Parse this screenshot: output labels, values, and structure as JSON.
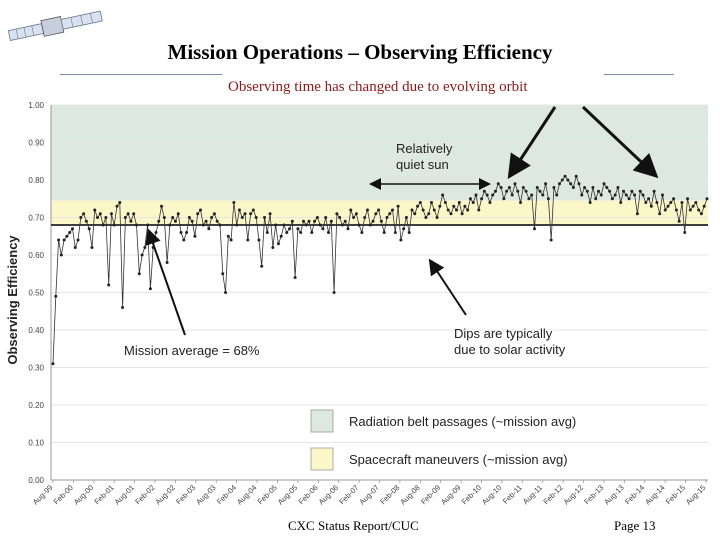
{
  "slide": {
    "title": "Mission Operations – Observing Efficiency",
    "subtitle": "Observing time has changed due to evolving orbit",
    "footer_center": "CXC Status Report/CUC",
    "footer_page": "Page 13"
  },
  "colors": {
    "title_rule": "#7a8fb0",
    "subtitle": "#8b1a1a",
    "radiation_band": "#dde8e2",
    "maneuver_band": "#fbf7c9",
    "series": "#333333"
  },
  "chart_data": {
    "type": "line",
    "ylabel": "Observing Efficiency",
    "ylim": [
      0.0,
      1.0
    ],
    "yticks": [
      "0.00",
      "0.10",
      "0.20",
      "0.30",
      "0.40",
      "0.50",
      "0.60",
      "0.70",
      "0.80",
      "0.90",
      "1.00"
    ],
    "xticks": [
      "Aug-99",
      "Feb-00",
      "Aug-00",
      "Feb-01",
      "Aug-01",
      "Feb-02",
      "Aug-02",
      "Feb-03",
      "Aug-03",
      "Feb-04",
      "Aug-04",
      "Feb-05",
      "Aug-05",
      "Feb-06",
      "Aug-06",
      "Feb-07",
      "Aug-07",
      "Feb-08",
      "Aug-08",
      "Feb-09",
      "Aug-09",
      "Feb-10",
      "Aug-10",
      "Feb-11",
      "Aug-11",
      "Feb-12",
      "Aug-12",
      "Feb-13",
      "Aug-13",
      "Feb-14",
      "Aug-14",
      "Feb-15",
      "Aug-15"
    ],
    "bands": [
      {
        "label": "Radiation belt passages (~mission avg)",
        "from": 0.745,
        "to": 1.0
      },
      {
        "label": "Spacecraft maneuvers (~mission avg)",
        "from": 0.68,
        "to": 0.745
      }
    ],
    "mission_average": 0.68,
    "series": [
      {
        "name": "Observing efficiency",
        "values": [
          0.31,
          0.49,
          0.64,
          0.6,
          0.64,
          0.65,
          0.66,
          0.67,
          0.62,
          0.64,
          0.7,
          0.71,
          0.69,
          0.67,
          0.62,
          0.72,
          0.7,
          0.71,
          0.68,
          0.7,
          0.52,
          0.71,
          0.68,
          0.73,
          0.74,
          0.46,
          0.7,
          0.71,
          0.69,
          0.71,
          0.68,
          0.55,
          0.6,
          0.62,
          0.68,
          0.51,
          0.62,
          0.66,
          0.69,
          0.73,
          0.7,
          0.58,
          0.68,
          0.7,
          0.69,
          0.71,
          0.66,
          0.64,
          0.66,
          0.7,
          0.69,
          0.65,
          0.71,
          0.72,
          0.68,
          0.69,
          0.67,
          0.7,
          0.71,
          0.69,
          0.68,
          0.55,
          0.5,
          0.65,
          0.64,
          0.74,
          0.68,
          0.72,
          0.7,
          0.71,
          0.64,
          0.71,
          0.72,
          0.7,
          0.64,
          0.57,
          0.7,
          0.66,
          0.71,
          0.62,
          0.68,
          0.63,
          0.65,
          0.68,
          0.66,
          0.67,
          0.69,
          0.54,
          0.67,
          0.66,
          0.69,
          0.68,
          0.69,
          0.66,
          0.69,
          0.7,
          0.68,
          0.67,
          0.7,
          0.66,
          0.69,
          0.5,
          0.71,
          0.7,
          0.68,
          0.69,
          0.67,
          0.72,
          0.7,
          0.71,
          0.68,
          0.66,
          0.7,
          0.72,
          0.68,
          0.69,
          0.71,
          0.72,
          0.69,
          0.66,
          0.7,
          0.71,
          0.72,
          0.66,
          0.73,
          0.64,
          0.67,
          0.7,
          0.66,
          0.72,
          0.71,
          0.73,
          0.74,
          0.72,
          0.7,
          0.71,
          0.74,
          0.72,
          0.7,
          0.73,
          0.76,
          0.74,
          0.72,
          0.71,
          0.73,
          0.72,
          0.74,
          0.71,
          0.73,
          0.72,
          0.75,
          0.74,
          0.76,
          0.72,
          0.75,
          0.77,
          0.76,
          0.74,
          0.76,
          0.77,
          0.79,
          0.78,
          0.75,
          0.77,
          0.78,
          0.76,
          0.79,
          0.77,
          0.74,
          0.78,
          0.77,
          0.75,
          0.76,
          0.67,
          0.78,
          0.77,
          0.76,
          0.79,
          0.75,
          0.64,
          0.78,
          0.76,
          0.79,
          0.8,
          0.81,
          0.8,
          0.79,
          0.78,
          0.81,
          0.79,
          0.76,
          0.78,
          0.77,
          0.74,
          0.78,
          0.75,
          0.77,
          0.76,
          0.79,
          0.78,
          0.77,
          0.75,
          0.76,
          0.78,
          0.74,
          0.77,
          0.76,
          0.75,
          0.77,
          0.76,
          0.71,
          0.77,
          0.76,
          0.74,
          0.75,
          0.73,
          0.77,
          0.74,
          0.71,
          0.76,
          0.72,
          0.73,
          0.74,
          0.75,
          0.72,
          0.69,
          0.74,
          0.66,
          0.75,
          0.72,
          0.73,
          0.74,
          0.72,
          0.71,
          0.73,
          0.75
        ]
      }
    ],
    "annotations": [
      {
        "text": "Relatively quiet sun",
        "lines": [
          "Relatively",
          "quiet sun"
        ]
      },
      {
        "text": "Mission average = 68%",
        "lines": [
          "Mission average = 68%"
        ]
      },
      {
        "text": "Dips are typically due to solar activity",
        "lines": [
          "Dips are typically",
          "due to solar activity"
        ]
      }
    ]
  }
}
